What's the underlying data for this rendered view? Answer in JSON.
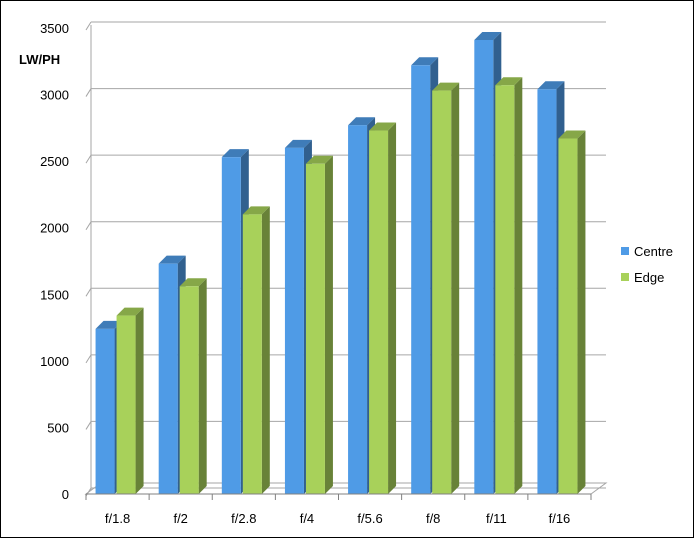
{
  "chart_data": {
    "type": "bar",
    "title": "",
    "xlabel": "",
    "ylabel": "LW/PH",
    "ylim": [
      0,
      3500
    ],
    "yticks": [
      0,
      500,
      1000,
      1500,
      2000,
      2500,
      3000,
      3500
    ],
    "grid": true,
    "legend_position": "right",
    "categories": [
      "f/1.8",
      "f/2",
      "f/2.8",
      "f/4",
      "f/5.6",
      "f/8",
      "f/11",
      "f/16"
    ],
    "series": [
      {
        "name": "Centre",
        "color": "#4f9be6",
        "values": [
          1240,
          1730,
          2530,
          2600,
          2770,
          3220,
          3410,
          3040
        ]
      },
      {
        "name": "Edge",
        "color": "#a8d15a",
        "values": [
          1340,
          1560,
          2100,
          2480,
          2730,
          3030,
          3070,
          2670
        ]
      }
    ]
  }
}
